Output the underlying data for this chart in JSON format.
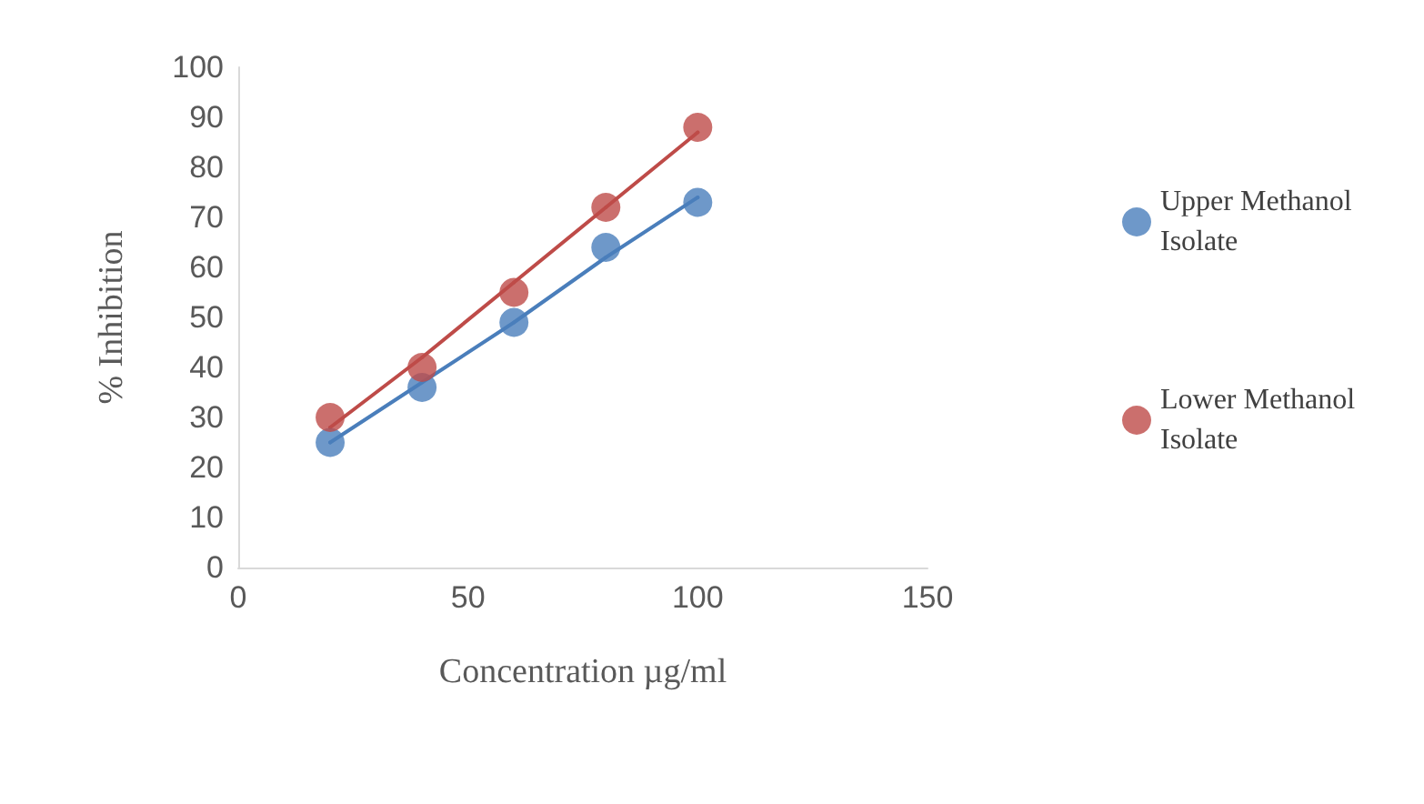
{
  "chart_data": {
    "type": "scatter",
    "xlabel": "Concentration µg/ml",
    "ylabel": "% Inhibition",
    "x": [
      20,
      40,
      60,
      80,
      100
    ],
    "series": [
      {
        "name": "Upper Methanol Isolate",
        "color": "#4a7ebb",
        "values": [
          25,
          36,
          49,
          64,
          73
        ]
      },
      {
        "name": "Lower Methanol Isolate",
        "color": "#be4b48",
        "values": [
          30,
          40,
          55,
          72,
          88
        ]
      },
      {
        "type": "line",
        "color": "#4a7ebb",
        "values": [
          25,
          37,
          49,
          62,
          74
        ],
        "marker": "none"
      },
      {
        "type": "line",
        "color": "#be4b48",
        "values": [
          28,
          42,
          57,
          72,
          87
        ],
        "marker": "none"
      }
    ],
    "xlim": [
      0,
      150
    ],
    "xticks": [
      0,
      50,
      100,
      150
    ],
    "ylim": [
      0,
      100
    ],
    "yticks": [
      0,
      10,
      20,
      30,
      40,
      50,
      60,
      70,
      80,
      90,
      100
    ],
    "grid": false,
    "legend": "right",
    "marker": "circle",
    "line_style": "solid"
  }
}
